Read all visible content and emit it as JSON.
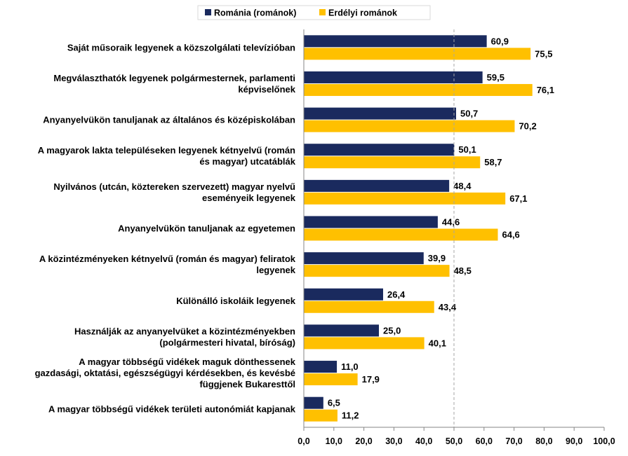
{
  "chart_data": {
    "type": "bar",
    "orientation": "horizontal",
    "title": "",
    "xlabel": "",
    "ylabel": "",
    "xlim": [
      0,
      100
    ],
    "xticks": [
      0,
      10,
      20,
      30,
      40,
      50,
      60,
      70,
      80,
      90,
      100
    ],
    "xtick_labels": [
      "0,0",
      "10,0",
      "20,0",
      "30,0",
      "40,0",
      "50,0",
      "60,0",
      "70,0",
      "80,0",
      "90,0",
      "100,0"
    ],
    "reference_line": 50,
    "grid": false,
    "legend_position": "top",
    "categories": [
      [
        "Saját műsoraik legyenek a közszolgálati televízióban"
      ],
      [
        "Megválaszthatók legyenek polgármesternek, parlamenti",
        "képviselőnek"
      ],
      [
        "Anyanyelvükön tanuljanak az általános és középiskolában"
      ],
      [
        "A magyarok lakta településeken legyenek kétnyelvű (román",
        "és magyar) utcatáblák"
      ],
      [
        "Nyilvános (utcán, köztereken szervezett) magyar nyelvű",
        "eseményeik legyenek"
      ],
      [
        "Anyanyelvükön tanuljanak az egyetemen"
      ],
      [
        "A közintézményeken kétnyelvű (román és magyar) feliratok",
        "legyenek"
      ],
      [
        "Különálló iskoláik legyenek"
      ],
      [
        "Használják az anyanyelvüket a közintézményekben",
        "(polgármesteri hivatal, bíróság)"
      ],
      [
        "A magyar többségű vidékek maguk dönthessenek",
        "gazdasági, oktatási, egészségügyi kérdésekben, és kevésbé",
        "függjenek Bukaresttől"
      ],
      [
        "A magyar többségű vidékek területi autonómiát kapjanak"
      ]
    ],
    "series": [
      {
        "name": "Románia (románok)",
        "color": "#1a2a5e",
        "values": [
          60.9,
          59.5,
          50.7,
          50.1,
          48.4,
          44.6,
          39.9,
          26.4,
          25.0,
          11.0,
          6.5
        ],
        "labels": [
          "60,9",
          "59,5",
          "50,7",
          "50,1",
          "48,4",
          "44,6",
          "39,9",
          "26,4",
          "25,0",
          "11,0",
          "6,5"
        ]
      },
      {
        "name": "Erdélyi románok",
        "color": "#ffc000",
        "values": [
          75.5,
          76.1,
          70.2,
          58.7,
          67.1,
          64.6,
          48.5,
          43.4,
          40.1,
          17.9,
          11.2
        ],
        "labels": [
          "75,5",
          "76,1",
          "70,2",
          "58,7",
          "67,1",
          "64,6",
          "48,5",
          "43,4",
          "40,1",
          "17,9",
          "11,2"
        ]
      }
    ]
  }
}
